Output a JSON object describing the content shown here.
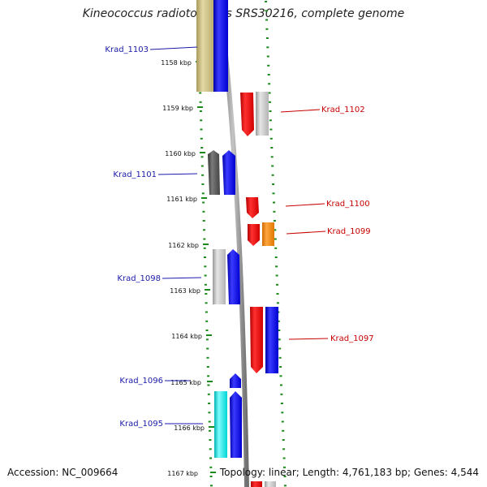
{
  "title": "Kineococcus radiotolerans SRS30216, complete genome",
  "footer": {
    "accession": "Accession: NC_009664",
    "summary": "Topology: linear; Length: 4,761,183 bp; Genes: 4,544"
  },
  "ruler": {
    "labels": [
      "1158 kbp",
      "1159 kbp",
      "1160 kbp",
      "1161 kbp",
      "1162 kbp",
      "1163 kbp",
      "1164 kbp",
      "1165 kbp",
      "1166 kbp",
      "1167 kbp"
    ]
  },
  "genes": {
    "left": [
      {
        "name": "Krad_1103",
        "color": "#1a1aa8"
      },
      {
        "name": "Krad_1101",
        "color": "#1a1aa8"
      },
      {
        "name": "Krad_1098",
        "color": "#1a1aa8"
      },
      {
        "name": "Krad_1096",
        "color": "#1a1aa8"
      },
      {
        "name": "Krad_1095",
        "color": "#1a1aa8"
      }
    ],
    "right": [
      {
        "name": "Krad_1102",
        "color": "#c80000"
      },
      {
        "name": "Krad_1100",
        "color": "#c80000"
      },
      {
        "name": "Krad_1099",
        "color": "#c80000"
      },
      {
        "name": "Krad_1097",
        "color": "#c80000"
      }
    ]
  },
  "colors": {
    "tick": "#1a8a1a",
    "backbone": "#8c8c8c",
    "forward": "#0000ff",
    "reverse": "#ff0000",
    "gray": "#c0c0c0",
    "darkgray": "#555555",
    "olive": "#c8bc84",
    "orange": "#ff8c00",
    "cyan": "#00e8e8"
  }
}
